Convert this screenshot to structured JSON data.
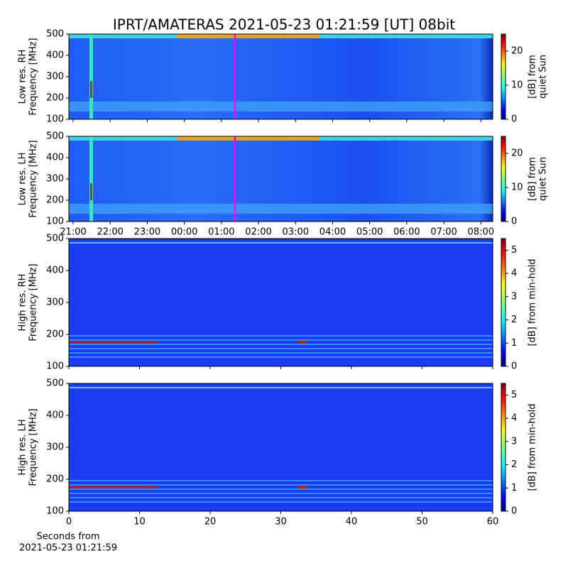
{
  "chart_data": [
    {
      "type": "heatmap",
      "title": "IPRT/AMATERAS 2021-05-23 01:21:59 [UT]   08bit",
      "ylabel": [
        "Low res. RH",
        "Frequency [MHz]"
      ],
      "xlim": [
        20.885,
        32.32
      ],
      "xticks": [
        21,
        22,
        23,
        24,
        25,
        26,
        27,
        28,
        29,
        30,
        31,
        32
      ],
      "xticklabels": false,
      "ylim": [
        100,
        500
      ],
      "yticks": [
        100,
        200,
        300,
        400,
        500
      ],
      "colorbar_label": [
        "[dB] from",
        "quiet Sun"
      ],
      "clim": [
        0,
        25
      ],
      "cticks": [
        0,
        10,
        20
      ],
      "cursor_x": 25.366,
      "cursor_color": "#ff00ff",
      "style": "low"
    },
    {
      "type": "heatmap",
      "ylabel": [
        "Low res. LH",
        "Frequency [MHz]"
      ],
      "xlim": [
        20.885,
        32.32
      ],
      "xticks": [
        {
          "value": 21,
          "label": "21:00"
        },
        {
          "value": 22,
          "label": "22:00"
        },
        {
          "value": 23,
          "label": "23:00"
        },
        {
          "value": 24,
          "label": "00:00"
        },
        {
          "value": 25,
          "label": "01:00"
        },
        {
          "value": 26,
          "label": "02:00"
        },
        {
          "value": 27,
          "label": "03:00"
        },
        {
          "value": 28,
          "label": "04:00"
        },
        {
          "value": 29,
          "label": "05:00"
        },
        {
          "value": 30,
          "label": "06:00"
        },
        {
          "value": 31,
          "label": "07:00"
        },
        {
          "value": 32,
          "label": "08:00"
        }
      ],
      "xticklabels": true,
      "ylim": [
        100,
        500
      ],
      "yticks": [
        100,
        200,
        300,
        400,
        500
      ],
      "colorbar_label": [
        "[dB] from",
        "quiet Sun"
      ],
      "clim": [
        0,
        25
      ],
      "cticks": [
        0,
        10,
        20
      ],
      "cursor_x": 25.366,
      "cursor_color": "#ff00ff",
      "style": "low"
    },
    {
      "type": "heatmap",
      "ylabel": [
        "High res. RH",
        "Frequency [MHz]"
      ],
      "xlim": [
        0,
        60
      ],
      "xticks": [
        0,
        10,
        20,
        30,
        40,
        50,
        60
      ],
      "xticklabels": false,
      "ylim": [
        100,
        500
      ],
      "yticks": [
        100,
        200,
        300,
        400,
        500
      ],
      "colorbar_label": [
        "[dB] from min-hold"
      ],
      "clim": [
        0,
        5.5
      ],
      "cticks": [
        0,
        1,
        2,
        3,
        4,
        5
      ],
      "style": "high"
    },
    {
      "type": "heatmap",
      "ylabel": [
        "High res. LH",
        "Frequency [MHz]"
      ],
      "xlim": [
        0,
        60
      ],
      "xticks": [
        0,
        10,
        20,
        30,
        40,
        50,
        60
      ],
      "xticklabels": true,
      "xlabel": [
        "Seconds from",
        "2021-05-23 01:21:59"
      ],
      "ylim": [
        100,
        500
      ],
      "yticks": [
        100,
        200,
        300,
        400,
        500
      ],
      "colorbar_label": [
        "[dB] from min-hold"
      ],
      "clim": [
        0,
        5.5
      ],
      "cticks": [
        0,
        1,
        2,
        3,
        4,
        5
      ],
      "style": "high"
    }
  ]
}
